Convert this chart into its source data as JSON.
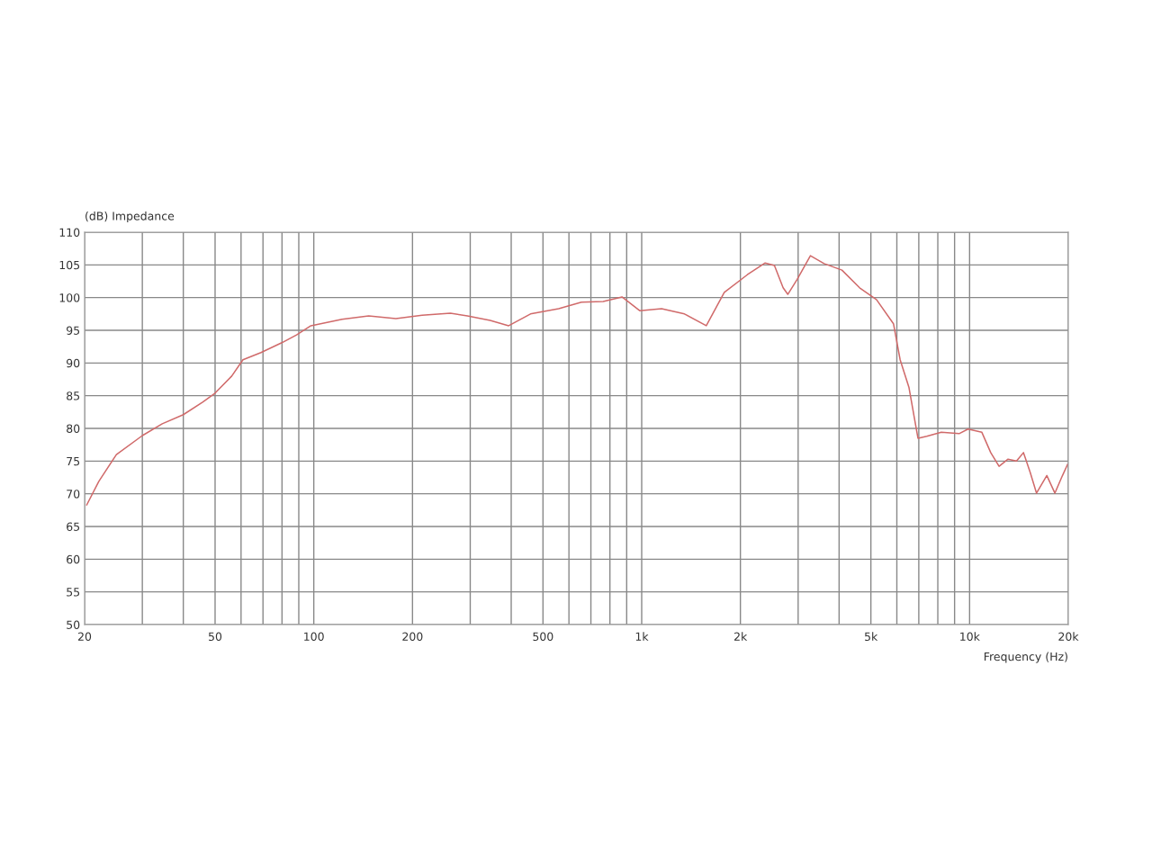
{
  "chart_data": {
    "type": "line",
    "xlabel": "Frequency (Hz)",
    "ylabel": "(dB) Impedance",
    "log": "x",
    "grid": true,
    "marker": "none",
    "line_style": "solid",
    "xlim": [
      20,
      20000
    ],
    "ylim": [
      50,
      110
    ],
    "xticks": [
      20,
      {
        "value": 30,
        "label": null
      },
      {
        "value": 40,
        "label": null
      },
      50,
      {
        "value": 60,
        "label": null
      },
      {
        "value": 70,
        "label": null
      },
      {
        "value": 80,
        "label": null
      },
      {
        "value": 90,
        "label": null
      },
      100,
      200,
      {
        "value": 300,
        "label": null
      },
      {
        "value": 400,
        "label": null
      },
      500,
      {
        "value": 600,
        "label": null
      },
      {
        "value": 700,
        "label": null
      },
      {
        "value": 800,
        "label": null
      },
      {
        "value": 900,
        "label": null
      },
      {
        "value": 1000,
        "label": "1k"
      },
      {
        "value": 2000,
        "label": "2k"
      },
      {
        "value": 3000,
        "label": null
      },
      {
        "value": 4000,
        "label": null
      },
      {
        "value": 5000,
        "label": "5k"
      },
      {
        "value": 6000,
        "label": null
      },
      {
        "value": 7000,
        "label": null
      },
      {
        "value": 8000,
        "label": null
      },
      {
        "value": 9000,
        "label": null
      },
      {
        "value": 10000,
        "label": "10k"
      },
      {
        "value": 20000,
        "label": "20k"
      }
    ],
    "yticks": [
      50,
      55,
      60,
      65,
      70,
      75,
      80,
      85,
      90,
      95,
      100,
      105,
      110
    ],
    "series": [
      {
        "color": "#d06a6a",
        "x": [
          20.3,
          22.1,
          25,
          30,
          34.5,
          40,
          45.8,
          50,
          56.2,
          60.8,
          69,
          79.9,
          88.6,
          98,
          122,
          147,
          178,
          214,
          261,
          294,
          345,
          393,
          458,
          558,
          655,
          763,
          871,
          986,
          1150,
          1350,
          1574,
          1786,
          2100,
          2380,
          2540,
          2700,
          2790,
          2980,
          3270,
          3600,
          4080,
          4620,
          5200,
          5860,
          6140,
          6530,
          6960,
          7400,
          8200,
          9290,
          9890,
          10900,
          11600,
          12300,
          13100,
          13900,
          14600,
          15300,
          16000,
          17200,
          18200,
          19200,
          19900
        ],
        "values": [
          68.3,
          71.9,
          76.0,
          78.9,
          80.7,
          82.1,
          84.0,
          85.4,
          88.0,
          90.5,
          91.6,
          93.1,
          94.3,
          95.7,
          96.7,
          97.2,
          96.8,
          97.3,
          97.6,
          97.2,
          96.5,
          95.7,
          97.5,
          98.3,
          99.3,
          99.4,
          100.1,
          98.0,
          98.3,
          97.5,
          95.7,
          100.8,
          103.5,
          105.3,
          104.9,
          101.5,
          100.5,
          102.8,
          106.4,
          105.2,
          104.2,
          101.5,
          99.7,
          96.0,
          90.5,
          86.3,
          78.5,
          78.8,
          79.4,
          79.2,
          79.9,
          79.4,
          76.3,
          74.2,
          75.3,
          75.0,
          76.3,
          73.3,
          70.1,
          72.8,
          70.1,
          72.8,
          74.5
        ]
      }
    ]
  }
}
